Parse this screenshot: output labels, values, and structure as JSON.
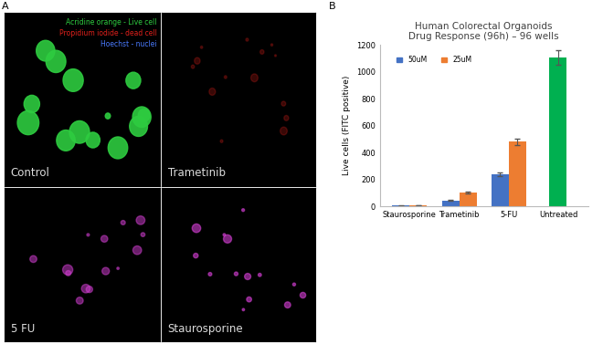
{
  "panel_labels": [
    "A",
    "B"
  ],
  "images": {
    "panels": [
      "Control",
      "Trametinib",
      "5 FU",
      "Staurosporine"
    ],
    "stain_legend": [
      {
        "text": "Acridine orange - Live cell",
        "color": "#2ecc40"
      },
      {
        "text": "Propidium iodide - dead cell",
        "color": "#e0201b"
      },
      {
        "text": "Hoechst - nuclei",
        "color": "#4a7bff"
      }
    ]
  },
  "chart_data": {
    "type": "bar",
    "title": "Human Colorectal Organoids\nDrug Response (96h) – 96 wells",
    "y_label": "Live cells (FITC positive)",
    "categories": [
      "Staurosporine",
      "Trametinib",
      "5-FU",
      "Untreated"
    ],
    "series": [
      {
        "name": "50uM",
        "color": "#4472c4",
        "values": [
          5,
          45,
          240,
          null
        ],
        "errors": [
          1,
          5,
          12,
          null
        ]
      },
      {
        "name": "25uM",
        "color": "#ed7d31",
        "values": [
          8,
          105,
          480,
          null
        ],
        "errors": [
          2,
          8,
          25,
          null
        ]
      },
      {
        "color": "#00b050",
        "values": [
          null,
          null,
          null,
          1105
        ],
        "errors": [
          null,
          null,
          null,
          55
        ]
      }
    ],
    "ylim": [
      0,
      1200
    ],
    "yticks": [
      0,
      200,
      400,
      600,
      800,
      1000,
      1200
    ],
    "legend": "upper left",
    "grid": false
  }
}
